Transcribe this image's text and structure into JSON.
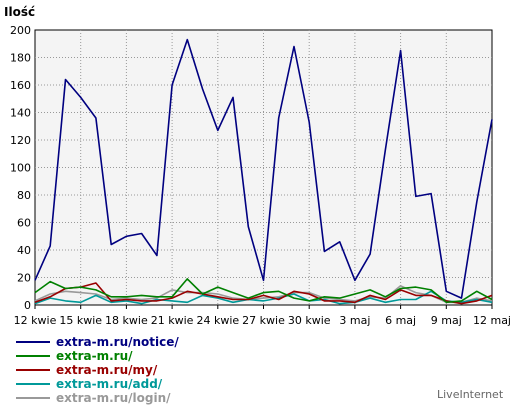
{
  "chart_data": {
    "type": "line",
    "ylabel": "Ilość",
    "ylim": [
      0,
      200
    ],
    "y_ticks": [
      0,
      20,
      40,
      60,
      80,
      100,
      120,
      140,
      160,
      180,
      200
    ],
    "x_tick_labels": [
      "12 kwie",
      "15 kwie",
      "18 kwie",
      "21 kwie",
      "24 kwie",
      "27 kwie",
      "30 kwie",
      "3 maj",
      "6 maj",
      "9 maj",
      "12 maj"
    ],
    "x_tick_day_index": [
      0,
      3,
      6,
      9,
      12,
      15,
      18,
      21,
      24,
      27,
      30
    ],
    "grid": true,
    "legend_position": "bottom-left",
    "series": [
      {
        "name": "extra-m.ru/notice/",
        "color": "#000080",
        "values": [
          18,
          43,
          164,
          151,
          136,
          44,
          50,
          52,
          36,
          160,
          193,
          157,
          127,
          151,
          57,
          18,
          136,
          188,
          133,
          39,
          46,
          18,
          37,
          113,
          185,
          79,
          81,
          10,
          5,
          75,
          135
        ]
      },
      {
        "name": "extra-m.ru/",
        "color": "#008000",
        "values": [
          9,
          17,
          12,
          13,
          11,
          6,
          6,
          7,
          6,
          6,
          19,
          8,
          13,
          9,
          5,
          9,
          10,
          5,
          3,
          6,
          5,
          8,
          11,
          6,
          12,
          13,
          11,
          2,
          3,
          10,
          4
        ]
      },
      {
        "name": "extra-m.ru/my/",
        "color": "#990000",
        "values": [
          2,
          6,
          12,
          13,
          16,
          3,
          4,
          3,
          3,
          5,
          10,
          8,
          6,
          4,
          4,
          7,
          4,
          10,
          8,
          3,
          3,
          2,
          7,
          4,
          11,
          7,
          7,
          3,
          1,
          3,
          7
        ]
      },
      {
        "name": "extra-m.ru/add/",
        "color": "#009999",
        "values": [
          1,
          5,
          3,
          2,
          7,
          2,
          3,
          1,
          4,
          3,
          2,
          7,
          5,
          2,
          4,
          3,
          5,
          8,
          3,
          4,
          1,
          2,
          5,
          2,
          4,
          4,
          10,
          3,
          2,
          4,
          2
        ]
      },
      {
        "name": "extra-m.ru/login/",
        "color": "#999999",
        "values": [
          3,
          8,
          10,
          9,
          8,
          4,
          5,
          4,
          5,
          11,
          9,
          9,
          8,
          5,
          4,
          5,
          6,
          9,
          9,
          5,
          4,
          3,
          6,
          5,
          14,
          9,
          7,
          2,
          2,
          5,
          3
        ]
      }
    ]
  },
  "credit": "LiveInternet"
}
